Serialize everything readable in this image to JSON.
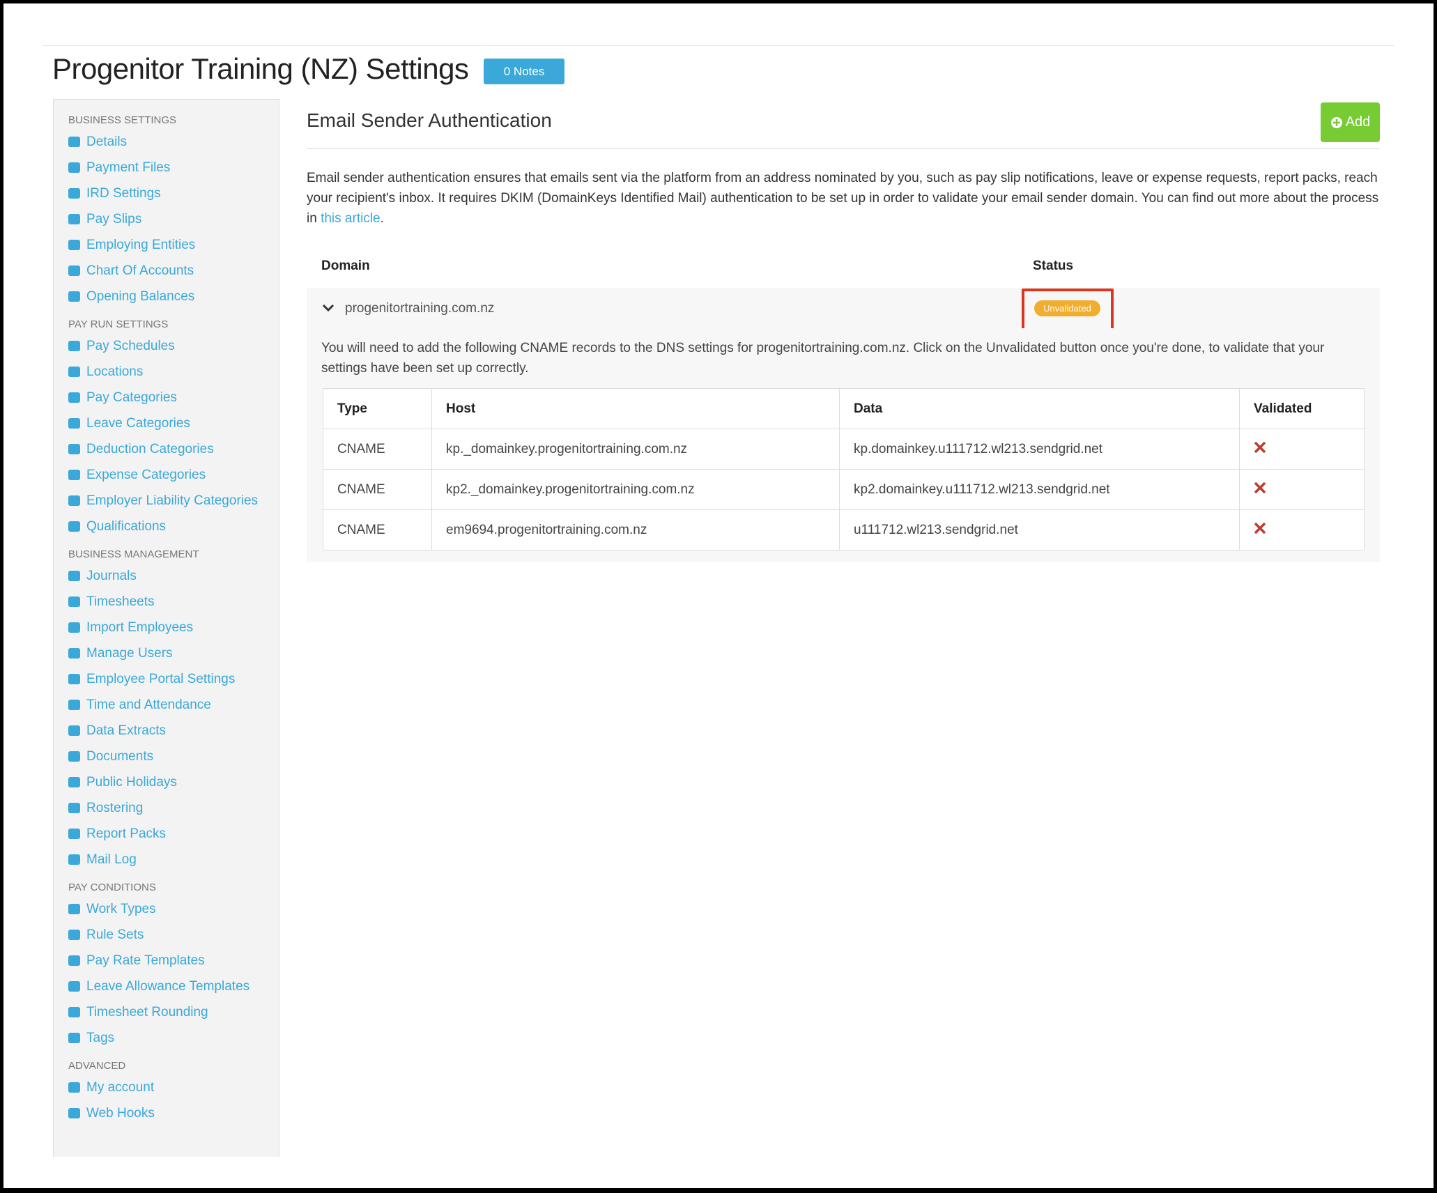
{
  "header": {
    "title": "Progenitor Training (NZ) Settings",
    "notes_button": "0 Notes"
  },
  "sidebar": {
    "sections": [
      {
        "title": "BUSINESS SETTINGS",
        "items": [
          "Details",
          "Payment Files",
          "IRD Settings",
          "Pay Slips",
          "Employing Entities",
          "Chart Of Accounts",
          "Opening Balances"
        ]
      },
      {
        "title": "PAY RUN SETTINGS",
        "items": [
          "Pay Schedules",
          "Locations",
          "Pay Categories",
          "Leave Categories",
          "Deduction Categories",
          "Expense Categories",
          "Employer Liability Categories",
          "Qualifications"
        ]
      },
      {
        "title": "BUSINESS MANAGEMENT",
        "items": [
          "Journals",
          "Timesheets",
          "Import Employees",
          "Manage Users",
          "Employee Portal Settings",
          "Time and Attendance",
          "Data Extracts",
          "Documents",
          "Public Holidays",
          "Rostering",
          "Report Packs",
          "Mail Log"
        ]
      },
      {
        "title": "PAY CONDITIONS",
        "items": [
          "Work Types",
          "Rule Sets",
          "Pay Rate Templates",
          "Leave Allowance Templates",
          "Timesheet Rounding",
          "Tags"
        ]
      },
      {
        "title": "ADVANCED",
        "items": [
          "My account",
          "Web Hooks"
        ]
      }
    ]
  },
  "main": {
    "title": "Email Sender Authentication",
    "add_button": "Add",
    "description": {
      "text_before": "Email sender authentication ensures that emails sent via the platform from an address nominated by you, such as pay slip notifications, leave or expense requests, report packs, reach your recipient's inbox. It requires DKIM (DomainKeys Identified Mail) authentication to be set up in order to validate your email sender domain. You can find out more about the process in ",
      "link": "this article",
      "text_after": "."
    },
    "domain_table": {
      "headers": [
        "Domain",
        "Status"
      ],
      "rows": [
        {
          "domain": "progenitortraining.com.nz",
          "status": "Unvalidated"
        }
      ]
    },
    "instructions": "You will need to add the following CNAME records to the DNS settings for progenitortraining.com.nz. Click on the Unvalidated button once you're done, to validate that your settings have been set up correctly.",
    "records": {
      "headers": [
        "Type",
        "Host",
        "Data",
        "Validated"
      ],
      "rows": [
        [
          "CNAME",
          "kp._domainkey.progenitortraining.com.nz",
          "kp.domainkey.u111712.wl213.sendgrid.net"
        ],
        [
          "CNAME",
          "kp2._domainkey.progenitortraining.com.nz",
          "kp2.domainkey.u111712.wl213.sendgrid.net"
        ],
        [
          "CNAME",
          "em9694.progenitortraining.com.nz",
          "u111712.wl213.sendgrid.net"
        ]
      ]
    }
  }
}
